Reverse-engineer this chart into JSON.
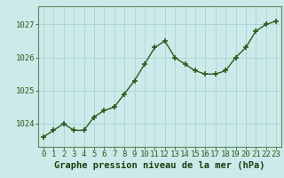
{
  "x": [
    0,
    1,
    2,
    3,
    4,
    5,
    6,
    7,
    8,
    9,
    10,
    11,
    12,
    13,
    14,
    15,
    16,
    17,
    18,
    19,
    20,
    21,
    22,
    23
  ],
  "y": [
    1023.6,
    1023.8,
    1024.0,
    1023.8,
    1023.8,
    1024.2,
    1024.4,
    1024.5,
    1024.9,
    1025.3,
    1025.8,
    1026.3,
    1026.5,
    1026.0,
    1025.8,
    1025.6,
    1025.5,
    1025.5,
    1025.6,
    1026.0,
    1026.3,
    1026.8,
    1027.0,
    1027.1
  ],
  "ylim": [
    1023.3,
    1027.55
  ],
  "yticks": [
    1024,
    1025,
    1026,
    1027
  ],
  "xticks": [
    0,
    1,
    2,
    3,
    4,
    5,
    6,
    7,
    8,
    9,
    10,
    11,
    12,
    13,
    14,
    15,
    16,
    17,
    18,
    19,
    20,
    21,
    22,
    23
  ],
  "line_color": "#2d5a1b",
  "marker": "+",
  "marker_color": "#2d5a1b",
  "bg_color": "#cceaea",
  "grid_color": "#a8d4d4",
  "xlabel": "Graphe pression niveau de la mer (hPa)",
  "xlabel_color": "#1a4010",
  "tick_color": "#2d5a1b",
  "axis_color": "#5a8a5a",
  "xlabel_fontsize": 7.5,
  "tick_fontsize": 6.5,
  "linewidth": 1.0,
  "markersize": 4
}
